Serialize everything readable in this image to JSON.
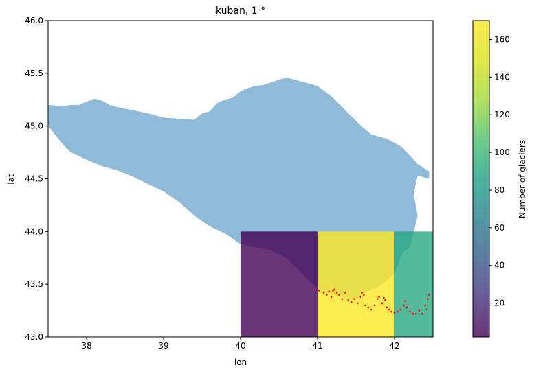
{
  "chart_data": {
    "type": "heatmap",
    "title": "kuban, 1 °",
    "xlabel": "lon",
    "ylabel": "lat",
    "xlim": [
      37.5,
      42.5
    ],
    "ylim": [
      43.0,
      46.0
    ],
    "xticks": [
      "38",
      "39",
      "40",
      "41",
      "42"
    ],
    "xtick_values": [
      38,
      39,
      40,
      41,
      42
    ],
    "yticks": [
      "43.0",
      "43.5",
      "44.0",
      "44.5",
      "45.0",
      "45.5",
      "46.0"
    ],
    "ytick_values": [
      43.0,
      43.5,
      44.0,
      44.5,
      45.0,
      45.5,
      46.0
    ],
    "grid": false,
    "cells": [
      {
        "lon": [
          40,
          41
        ],
        "lat": [
          43,
          44
        ],
        "value": 3
      },
      {
        "lon": [
          41,
          42
        ],
        "lat": [
          43,
          44
        ],
        "value": 170
      },
      {
        "lon": [
          42,
          42.5
        ],
        "lat": [
          43,
          44
        ],
        "value": 90
      }
    ],
    "colorbar": {
      "label": "Number of glaciers",
      "range": [
        2,
        170
      ],
      "ticks": [
        "20",
        "40",
        "60",
        "80",
        "100",
        "120",
        "140",
        "160"
      ],
      "tick_values": [
        20,
        40,
        60,
        80,
        100,
        120,
        140,
        160
      ],
      "colormap": "viridis"
    },
    "basin_outline": {
      "color": "#8fbad8",
      "lonlat": [
        [
          37.5,
          45.2
        ],
        [
          37.7,
          45.19
        ],
        [
          37.8,
          45.2
        ],
        [
          37.9,
          45.2
        ],
        [
          38.0,
          45.23
        ],
        [
          38.1,
          45.26
        ],
        [
          38.2,
          45.24
        ],
        [
          38.3,
          45.2
        ],
        [
          38.4,
          45.18
        ],
        [
          38.6,
          45.15
        ],
        [
          38.8,
          45.12
        ],
        [
          39.0,
          45.08
        ],
        [
          39.2,
          45.07
        ],
        [
          39.4,
          45.06
        ],
        [
          39.5,
          45.12
        ],
        [
          39.6,
          45.14
        ],
        [
          39.7,
          45.22
        ],
        [
          39.8,
          45.25
        ],
        [
          39.9,
          45.27
        ],
        [
          40.0,
          45.33
        ],
        [
          40.1,
          45.36
        ],
        [
          40.2,
          45.38
        ],
        [
          40.3,
          45.39
        ],
        [
          40.5,
          45.44
        ],
        [
          40.6,
          45.46
        ],
        [
          40.8,
          45.42
        ],
        [
          41.0,
          45.38
        ],
        [
          41.2,
          45.27
        ],
        [
          41.4,
          45.12
        ],
        [
          41.6,
          44.98
        ],
        [
          41.7,
          44.92
        ],
        [
          41.9,
          44.88
        ],
        [
          42.1,
          44.8
        ],
        [
          42.3,
          44.64
        ],
        [
          42.45,
          44.57
        ],
        [
          42.45,
          44.5
        ],
        [
          42.3,
          44.53
        ],
        [
          42.25,
          44.36
        ],
        [
          42.3,
          44.15
        ],
        [
          42.25,
          44.0
        ],
        [
          42.2,
          43.85
        ],
        [
          42.1,
          43.8
        ],
        [
          42.0,
          43.6
        ],
        [
          41.8,
          43.48
        ],
        [
          41.6,
          43.42
        ],
        [
          41.5,
          43.35
        ],
        [
          41.2,
          43.4
        ],
        [
          41.0,
          43.45
        ],
        [
          40.8,
          43.6
        ],
        [
          40.6,
          43.75
        ],
        [
          40.4,
          43.82
        ],
        [
          40.2,
          43.85
        ],
        [
          40.0,
          43.88
        ],
        [
          39.8,
          43.98
        ],
        [
          39.6,
          44.05
        ],
        [
          39.4,
          44.15
        ],
        [
          39.2,
          44.28
        ],
        [
          39.0,
          44.38
        ],
        [
          38.8,
          44.45
        ],
        [
          38.6,
          44.52
        ],
        [
          38.4,
          44.58
        ],
        [
          38.2,
          44.62
        ],
        [
          38.0,
          44.68
        ],
        [
          37.8,
          44.75
        ],
        [
          37.7,
          44.82
        ],
        [
          37.5,
          45.0
        ]
      ]
    },
    "glaciers": {
      "color": "#ff0000",
      "points": [
        [
          40.96,
          43.46
        ],
        [
          41.02,
          43.44
        ],
        [
          41.08,
          43.42
        ],
        [
          41.12,
          43.4
        ],
        [
          41.15,
          43.43
        ],
        [
          41.18,
          43.38
        ],
        [
          41.22,
          43.45
        ],
        [
          41.25,
          43.42
        ],
        [
          41.28,
          43.4
        ],
        [
          41.32,
          43.36
        ],
        [
          41.36,
          43.42
        ],
        [
          41.4,
          43.35
        ],
        [
          41.44,
          43.33
        ],
        [
          41.48,
          43.36
        ],
        [
          41.52,
          43.32
        ],
        [
          41.56,
          43.38
        ],
        [
          41.58,
          43.42
        ],
        [
          41.62,
          43.3
        ],
        [
          41.66,
          43.28
        ],
        [
          41.7,
          43.26
        ],
        [
          41.74,
          43.3
        ],
        [
          41.78,
          43.36
        ],
        [
          41.8,
          43.38
        ],
        [
          41.84,
          43.32
        ],
        [
          41.88,
          43.35
        ],
        [
          41.9,
          43.28
        ],
        [
          41.93,
          43.26
        ],
        [
          41.96,
          43.24
        ],
        [
          42.0,
          43.23
        ],
        [
          42.04,
          43.24
        ],
        [
          42.08,
          43.26
        ],
        [
          42.12,
          43.3
        ],
        [
          42.16,
          43.28
        ],
        [
          42.2,
          43.24
        ],
        [
          42.24,
          43.22
        ],
        [
          42.28,
          43.22
        ],
        [
          42.32,
          43.25
        ],
        [
          42.36,
          43.22
        ],
        [
          42.4,
          43.3
        ],
        [
          42.43,
          43.36
        ],
        [
          42.45,
          43.4
        ],
        [
          41.2,
          43.44
        ],
        [
          41.6,
          43.4
        ],
        [
          41.86,
          43.37
        ],
        [
          42.14,
          43.34
        ],
        [
          42.42,
          43.26
        ]
      ]
    }
  }
}
